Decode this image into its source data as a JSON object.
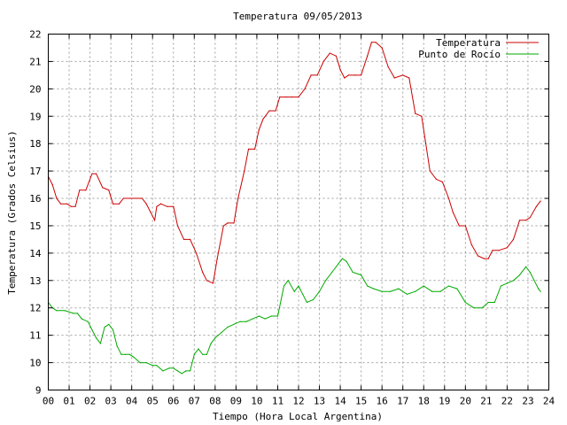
{
  "chart_data": {
    "type": "line",
    "title": "Temperatura 09/05/2013",
    "xlabel": "Tiempo (Hora Local Argentina)",
    "ylabel": "Temperatura (Grados Celsius)",
    "xlim": [
      0,
      24
    ],
    "ylim": [
      9,
      22
    ],
    "x_ticks": [
      "00",
      "01",
      "02",
      "03",
      "04",
      "05",
      "06",
      "07",
      "08",
      "09",
      "10",
      "11",
      "12",
      "13",
      "14",
      "15",
      "16",
      "17",
      "18",
      "19",
      "20",
      "21",
      "22",
      "23",
      "24"
    ],
    "y_ticks": [
      "9",
      "10",
      "11",
      "12",
      "13",
      "14",
      "15",
      "16",
      "17",
      "18",
      "19",
      "20",
      "21",
      "22"
    ],
    "grid": true,
    "legend_position": "top-right",
    "series": [
      {
        "name": "Temperatura",
        "color": "#cc0000",
        "x": [
          0.0,
          0.2,
          0.4,
          0.6,
          0.9,
          1.1,
          1.3,
          1.5,
          1.8,
          2.1,
          2.3,
          2.6,
          2.9,
          3.1,
          3.4,
          3.6,
          3.9,
          4.2,
          4.5,
          4.7,
          4.9,
          5.1,
          5.2,
          5.4,
          5.7,
          6.0,
          6.2,
          6.5,
          6.8,
          7.1,
          7.4,
          7.6,
          7.9,
          8.1,
          8.4,
          8.6,
          8.9,
          9.1,
          9.4,
          9.6,
          9.9,
          10.1,
          10.3,
          10.6,
          10.9,
          11.1,
          11.4,
          11.7,
          12.0,
          12.3,
          12.6,
          12.9,
          13.2,
          13.5,
          13.8,
          14.0,
          14.2,
          14.4,
          14.7,
          15.0,
          15.3,
          15.5,
          15.7,
          16.0,
          16.3,
          16.6,
          17.0,
          17.3,
          17.6,
          17.9,
          18.1,
          18.3,
          18.6,
          18.9,
          19.2,
          19.4,
          19.7,
          20.0,
          20.3,
          20.6,
          20.9,
          21.1,
          21.3,
          21.6,
          22.0,
          22.3,
          22.6,
          22.9,
          23.1,
          23.4,
          23.6
        ],
        "values": [
          16.8,
          16.5,
          16.0,
          15.8,
          15.8,
          15.7,
          15.7,
          16.3,
          16.3,
          16.9,
          16.9,
          16.4,
          16.3,
          15.8,
          15.8,
          16.0,
          16.0,
          16.0,
          16.0,
          15.8,
          15.5,
          15.2,
          15.7,
          15.8,
          15.7,
          15.7,
          15.0,
          14.5,
          14.5,
          14.0,
          13.3,
          13.0,
          12.9,
          13.8,
          15.0,
          15.1,
          15.1,
          16.0,
          17.0,
          17.8,
          17.8,
          18.5,
          18.9,
          19.2,
          19.2,
          19.7,
          19.7,
          19.7,
          19.7,
          20.0,
          20.5,
          20.5,
          21.0,
          21.3,
          21.2,
          20.7,
          20.4,
          20.5,
          20.5,
          20.5,
          21.2,
          21.7,
          21.7,
          21.5,
          20.8,
          20.4,
          20.5,
          20.4,
          19.1,
          19.0,
          18.0,
          17.0,
          16.7,
          16.6,
          16.0,
          15.5,
          15.0,
          15.0,
          14.3,
          13.9,
          13.8,
          13.8,
          14.1,
          14.1,
          14.2,
          14.5,
          15.2,
          15.2,
          15.3,
          15.7,
          15.9
        ]
      },
      {
        "name": "Punto de Rocío",
        "color": "#00aa00",
        "x": [
          0.0,
          0.2,
          0.4,
          0.8,
          1.2,
          1.4,
          1.6,
          1.9,
          2.1,
          2.3,
          2.5,
          2.7,
          2.9,
          3.1,
          3.3,
          3.5,
          3.7,
          3.9,
          4.1,
          4.4,
          4.7,
          5.0,
          5.2,
          5.5,
          5.8,
          6.0,
          6.2,
          6.4,
          6.6,
          6.8,
          7.0,
          7.2,
          7.4,
          7.6,
          7.8,
          8.0,
          8.3,
          8.6,
          8.9,
          9.2,
          9.5,
          9.8,
          10.1,
          10.4,
          10.7,
          11.0,
          11.3,
          11.5,
          11.8,
          12.0,
          12.2,
          12.4,
          12.7,
          13.0,
          13.3,
          13.6,
          13.9,
          14.1,
          14.3,
          14.6,
          15.0,
          15.3,
          15.6,
          16.0,
          16.4,
          16.8,
          17.2,
          17.6,
          18.0,
          18.4,
          18.8,
          19.2,
          19.6,
          20.0,
          20.4,
          20.8,
          21.1,
          21.4,
          21.7,
          22.0,
          22.3,
          22.6,
          22.9,
          23.1,
          23.3,
          23.5,
          23.6
        ],
        "values": [
          12.2,
          12.0,
          11.9,
          11.9,
          11.8,
          11.8,
          11.6,
          11.5,
          11.2,
          10.9,
          10.7,
          11.3,
          11.4,
          11.2,
          10.6,
          10.3,
          10.3,
          10.3,
          10.2,
          10.0,
          10.0,
          9.9,
          9.9,
          9.7,
          9.8,
          9.8,
          9.7,
          9.6,
          9.7,
          9.7,
          10.3,
          10.5,
          10.3,
          10.3,
          10.7,
          10.9,
          11.1,
          11.3,
          11.4,
          11.5,
          11.5,
          11.6,
          11.7,
          11.6,
          11.7,
          11.7,
          12.8,
          13.0,
          12.6,
          12.8,
          12.5,
          12.2,
          12.3,
          12.6,
          13.0,
          13.3,
          13.6,
          13.8,
          13.7,
          13.3,
          13.2,
          12.8,
          12.7,
          12.6,
          12.6,
          12.7,
          12.5,
          12.6,
          12.8,
          12.6,
          12.6,
          12.8,
          12.7,
          12.2,
          12.0,
          12.0,
          12.2,
          12.2,
          12.8,
          12.9,
          13.0,
          13.2,
          13.5,
          13.3,
          13.0,
          12.7,
          12.6
        ]
      }
    ]
  }
}
